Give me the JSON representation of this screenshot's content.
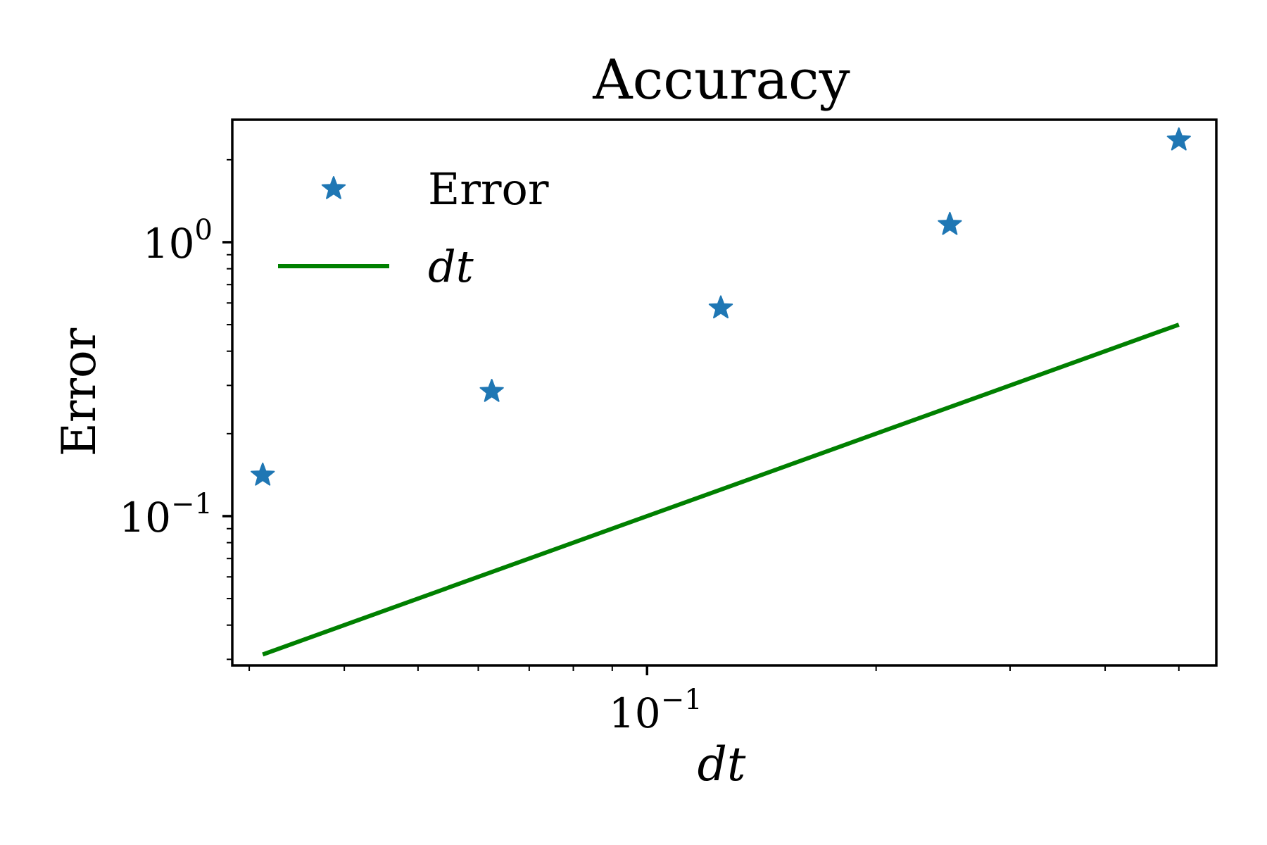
{
  "chart_data": {
    "type": "scatter",
    "title": "Accuracy",
    "xlabel": "dt",
    "ylabel": "Error",
    "xscale": "log",
    "yscale": "log",
    "xlim": [
      0.0285,
      0.56
    ],
    "ylim": [
      0.0285,
      2.8
    ],
    "grid": false,
    "legend_position": "top-left",
    "x_ticks": [
      {
        "base": "10",
        "exp": "−1",
        "value": 0.1
      }
    ],
    "y_ticks": [
      {
        "base": "10",
        "exp": "0",
        "value": 1
      },
      {
        "base": "10",
        "exp": "−1",
        "value": 0.1
      }
    ],
    "series": [
      {
        "name": "Error",
        "type": "scatter",
        "marker": "star",
        "color": "#1f77b4",
        "x": [
          0.03125,
          0.0625,
          0.125,
          0.25,
          0.5
        ],
        "y": [
          0.141,
          0.285,
          0.575,
          1.16,
          2.36
        ]
      },
      {
        "name": "dt",
        "type": "line",
        "color": "#008000",
        "x": [
          0.03125,
          0.5
        ],
        "y": [
          0.03125,
          0.5
        ]
      }
    ]
  }
}
